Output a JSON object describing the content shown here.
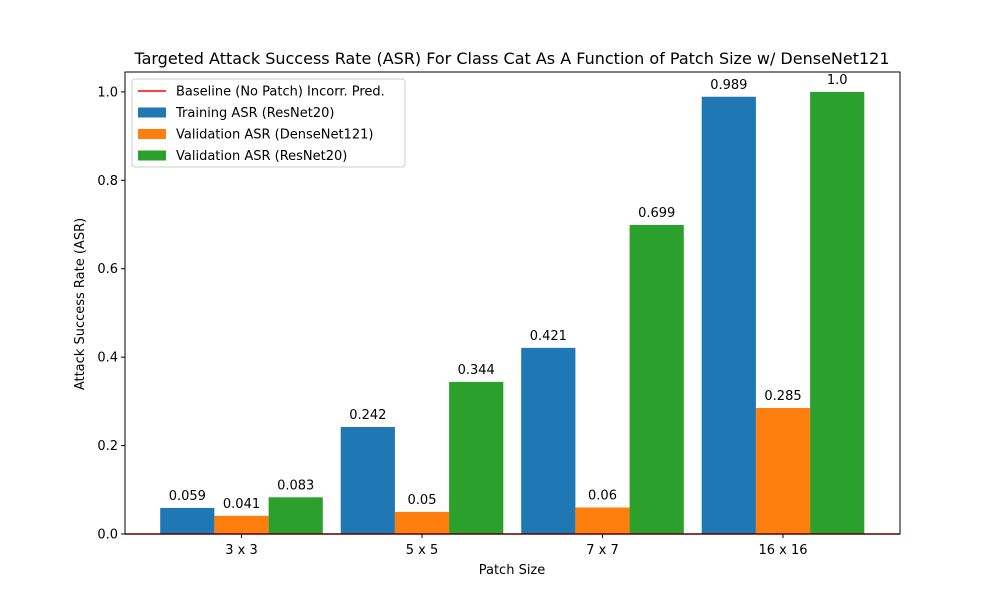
{
  "chart_data": {
    "type": "bar",
    "title": "Targeted Attack Success Rate (ASR) For Class Cat As A Function of Patch Size w/ DenseNet121",
    "xlabel": "Patch Size",
    "ylabel": "Attack Success Rate (ASR)",
    "categories": [
      "3 x 3",
      "5 x 5",
      "7 x 7",
      "16 x 16"
    ],
    "ylim": [
      0,
      1.045
    ],
    "yticks": [
      0.0,
      0.2,
      0.4,
      0.6,
      0.8,
      1.0
    ],
    "ytick_labels": [
      "0.0",
      "0.2",
      "0.4",
      "0.6",
      "0.8",
      "1.0"
    ],
    "grid": false,
    "legend_position": "upper-left",
    "baseline": {
      "name": "Baseline (No Patch) Incorr. Pred.",
      "value": 0,
      "color": "#ff0000"
    },
    "series": [
      {
        "name": "Training ASR (ResNet20)",
        "color": "#1f77b4",
        "values": [
          0.059,
          0.242,
          0.421,
          0.989
        ],
        "labels": [
          "0.059",
          "0.242",
          "0.421",
          "0.989"
        ]
      },
      {
        "name": "Validation ASR (DenseNet121)",
        "color": "#ff7f0e",
        "values": [
          0.041,
          0.05,
          0.06,
          0.285
        ],
        "labels": [
          "0.041",
          "0.05",
          "0.06",
          "0.285"
        ]
      },
      {
        "name": "Validation ASR (ResNet20)",
        "color": "#2ca02c",
        "values": [
          0.083,
          0.344,
          0.699,
          1.0
        ],
        "labels": [
          "0.083",
          "0.344",
          "0.699",
          "1.0"
        ]
      }
    ]
  }
}
